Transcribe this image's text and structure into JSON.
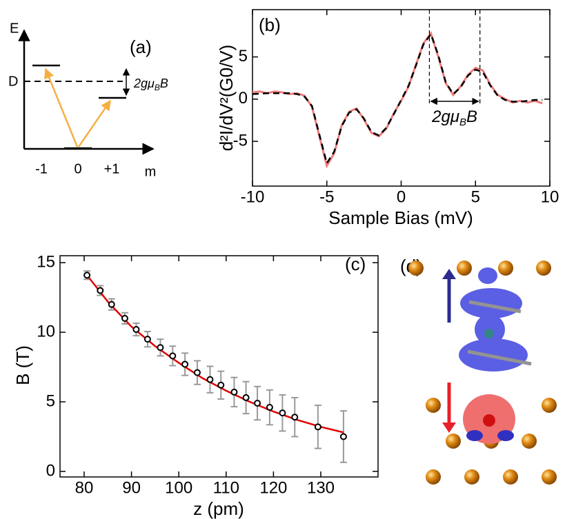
{
  "chart_data": [
    {
      "type": "level-diagram",
      "label": "(a)",
      "energy_axis": "E",
      "level_label": "D",
      "annotation": {
        "text": "2gμ",
        "sub": "B",
        "after": "B"
      },
      "categories": [
        "-1",
        "0",
        "+1"
      ],
      "x_axis": "m"
    },
    {
      "type": "line",
      "label": "(b)",
      "xlabel": "Sample Bias (mV)",
      "ylabel": "d²I/dV²(G0/V)",
      "annotation": {
        "text": "2gμ",
        "sub": "B",
        "after": "B"
      },
      "xlim": [
        -10,
        10
      ],
      "ylim": [
        -10.3,
        10.6
      ],
      "xticks": [
        -10,
        -5,
        0,
        5,
        10
      ],
      "yticks": [
        -5,
        0,
        5
      ],
      "vlines": [
        1.9,
        5.3
      ],
      "x": [
        -10,
        -9.5,
        -9,
        -8.5,
        -8,
        -7.5,
        -7,
        -6.5,
        -6,
        -5.5,
        -5,
        -4.5,
        -4,
        -3.5,
        -3,
        -2.5,
        -2,
        -1.5,
        -1,
        -0.5,
        0,
        0.5,
        1,
        1.5,
        2,
        2.5,
        3,
        3.5,
        4,
        4.5,
        5,
        5.5,
        6,
        6.5,
        7,
        7.5,
        8,
        8.5,
        9,
        9.5
      ],
      "series": [
        {
          "color": "#f07c7c",
          "dashed": false,
          "values": [
            0.8,
            0.9,
            0.7,
            0.9,
            0.8,
            0.6,
            0.7,
            0.4,
            -0.9,
            -4.4,
            -7.9,
            -6.4,
            -3.1,
            -1.5,
            -1.1,
            -2.4,
            -4.0,
            -4.4,
            -3.5,
            -1.7,
            -0.2,
            1.5,
            4.1,
            6.6,
            7.8,
            5.0,
            1.9,
            0.5,
            1.5,
            2.9,
            3.7,
            3.4,
            1.7,
            0.5,
            0.0,
            -0.4,
            -0.2,
            -0.4,
            -0.2,
            -0.5
          ]
        },
        {
          "color": "#000000",
          "dashed": true,
          "values": [
            0.6,
            0.65,
            0.7,
            0.7,
            0.7,
            0.7,
            0.6,
            0.3,
            -0.8,
            -4.2,
            -7.6,
            -6.2,
            -3.2,
            -1.6,
            -1.2,
            -2.3,
            -3.9,
            -4.3,
            -3.4,
            -1.8,
            -0.1,
            1.6,
            4.0,
            6.5,
            7.7,
            5.2,
            2.0,
            0.6,
            1.4,
            2.8,
            3.5,
            3.2,
            1.6,
            0.4,
            -0.1,
            -0.3,
            -0.3,
            -0.2,
            -0.1,
            -0.1
          ]
        }
      ]
    },
    {
      "type": "scatter",
      "label": "(c)",
      "xlabel": "z (pm)",
      "ylabel": "B (T)",
      "xlim": [
        74.9,
        142.1
      ],
      "ylim": [
        -0.4,
        15.5
      ],
      "xticks": [
        80,
        90,
        100,
        110,
        120,
        130
      ],
      "yticks": [
        0,
        5,
        10,
        15
      ],
      "x": [
        80.6,
        83.4,
        85.8,
        88.6,
        91.0,
        93.4,
        96.1,
        98.7,
        101.3,
        103.9,
        106.6,
        108.9,
        111.7,
        114.2,
        116.6,
        119.2,
        121.9,
        124.5,
        129.4,
        134.8
      ],
      "values": [
        14.1,
        13.0,
        12.0,
        11.0,
        10.2,
        9.5,
        8.9,
        8.3,
        7.7,
        7.1,
        6.6,
        6.2,
        5.7,
        5.3,
        4.9,
        4.6,
        4.2,
        3.9,
        3.2,
        2.5
      ],
      "errors": [
        0.3,
        0.35,
        0.4,
        0.4,
        0.45,
        0.55,
        0.6,
        0.7,
        0.8,
        0.85,
        0.95,
        1.0,
        1.05,
        1.15,
        1.2,
        1.25,
        1.3,
        1.4,
        1.55,
        1.85
      ],
      "color": "#000000",
      "error_color": "#999999",
      "fit": {
        "color": "#e00000",
        "x": [
          80.6,
          85,
          90,
          95,
          100,
          105,
          110,
          115,
          120,
          125,
          130,
          134.8
        ],
        "values": [
          14.1,
          12.2,
          10.4,
          9.0,
          7.8,
          6.7,
          5.8,
          5.0,
          4.3,
          3.7,
          3.2,
          2.8
        ]
      }
    },
    {
      "type": "image",
      "label": "(d)"
    }
  ]
}
